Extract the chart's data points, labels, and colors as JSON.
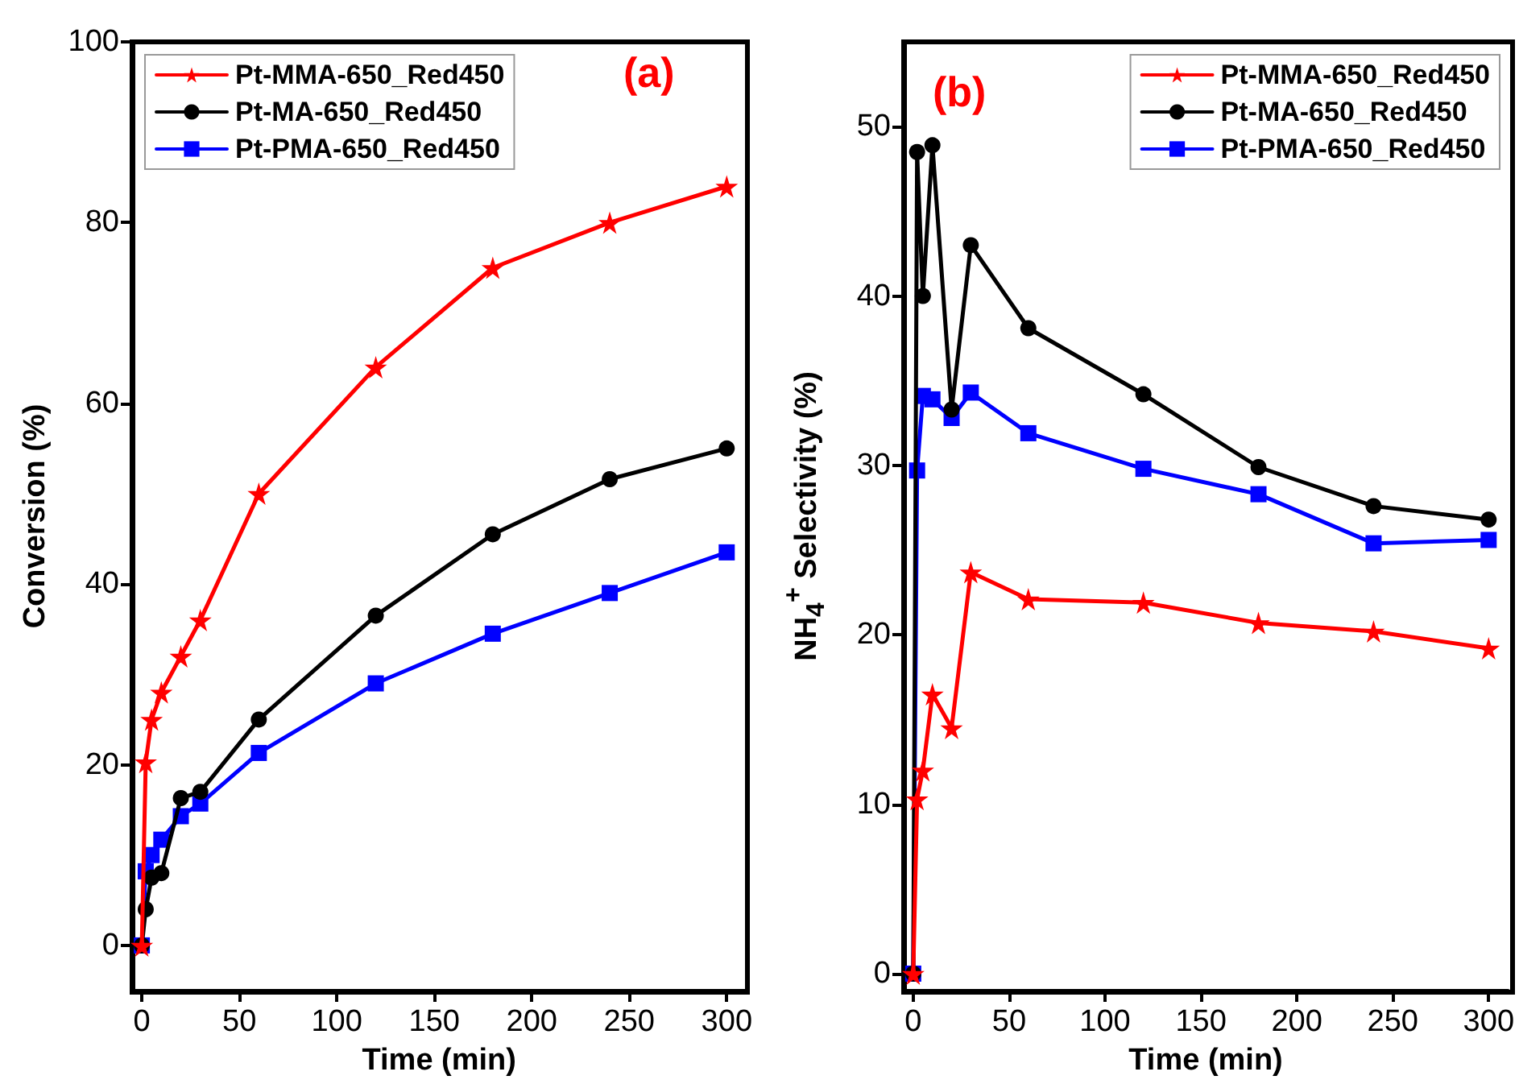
{
  "chart_data": [
    {
      "type": "line",
      "xlabel": "Time (min)",
      "ylabel": "Conversion (%)",
      "annotations": [
        "(a)"
      ],
      "xlim": [
        -5,
        310
      ],
      "ylim": [
        -5,
        100
      ],
      "xticks": [
        0,
        50,
        100,
        150,
        200,
        250,
        300
      ],
      "yticks": [
        0,
        20,
        40,
        60,
        80,
        100
      ],
      "grid": false,
      "legend": "top left",
      "series": [
        {
          "name": "Pt-MMA-650_Red450",
          "color": "#ff0000",
          "marker": "star",
          "x": [
            0,
            2,
            5,
            10,
            20,
            30,
            60,
            120,
            180,
            240,
            300
          ],
          "values": [
            0,
            20.3,
            25,
            28,
            32,
            36,
            50,
            64,
            75,
            80,
            84
          ]
        },
        {
          "name": "Pt-MA-650_Red450",
          "color": "#000000",
          "marker": "circle",
          "x": [
            0,
            2,
            5,
            10,
            20,
            30,
            60,
            120,
            180,
            240,
            300
          ],
          "values": [
            0,
            4,
            7.5,
            8,
            16.3,
            17,
            25,
            36.5,
            45.5,
            51.6,
            55
          ]
        },
        {
          "name": "Pt-PMA-650_Red450",
          "color": "#0000ff",
          "marker": "square",
          "x": [
            0,
            2,
            5,
            10,
            20,
            30,
            60,
            120,
            180,
            240,
            300
          ],
          "values": [
            0,
            8.2,
            10,
            11.7,
            14.3,
            15.7,
            21.3,
            29,
            34.5,
            39,
            43.5
          ]
        }
      ]
    },
    {
      "type": "line",
      "xlabel": "Time (min)",
      "ylabel": "NH$_{4}$$^{+}$ Selectivity (%)",
      "annotations": [
        "(b)"
      ],
      "xlim": [
        -5,
        310
      ],
      "ylim": [
        -1,
        55
      ],
      "xticks": [
        0,
        50,
        100,
        150,
        200,
        250,
        300
      ],
      "yticks": [
        0,
        10,
        20,
        30,
        40,
        50
      ],
      "grid": false,
      "legend": "top right",
      "series": [
        {
          "name": "Pt-MMA-650_Red450",
          "color": "#ff0000",
          "marker": "star",
          "x": [
            0,
            2,
            5,
            10,
            20,
            30,
            60,
            120,
            180,
            240,
            300
          ],
          "values": [
            0,
            10.3,
            12,
            16.5,
            14.5,
            23.7,
            22.1,
            21.9,
            20.7,
            20.2,
            19.2
          ]
        },
        {
          "name": "Pt-MA-650_Red450",
          "color": "#000000",
          "marker": "circle",
          "x": [
            0,
            2,
            5,
            10,
            20,
            30,
            60,
            120,
            180,
            240,
            300
          ],
          "values": [
            0,
            48.5,
            40,
            48.9,
            33.3,
            43,
            38.1,
            34.2,
            29.9,
            27.6,
            26.8
          ]
        },
        {
          "name": "Pt-PMA-650_Red450",
          "color": "#0000ff",
          "marker": "square",
          "x": [
            0,
            2,
            5,
            10,
            20,
            30,
            60,
            120,
            180,
            240,
            300
          ],
          "values": [
            0,
            29.7,
            34.1,
            33.9,
            32.8,
            34.3,
            31.9,
            29.8,
            28.3,
            25.4,
            25.6
          ]
        }
      ]
    }
  ]
}
